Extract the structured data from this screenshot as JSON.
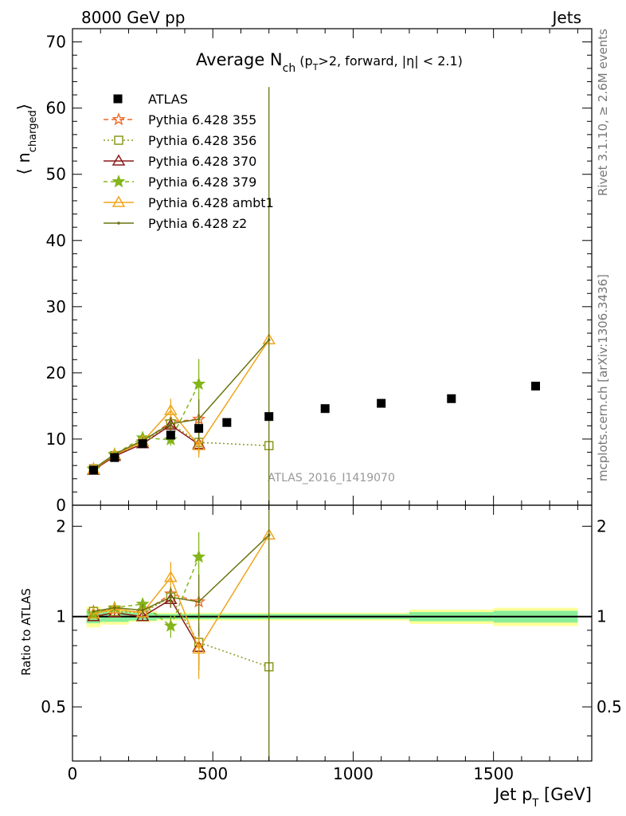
{
  "header": {
    "left": "8000 GeV pp",
    "right": "Jets",
    "side_top": "Rivet 3.1.10, ≥ 2.6M events",
    "side_bottom": "mcplots.cern.ch [arXiv:1306.3436]",
    "watermark": "ATLAS_2016_I1419070"
  },
  "chart_data": {
    "type": "line",
    "title": "Average N_ch (p_T>2, forward, |η| < 2.1)",
    "title_main": "Average N",
    "title_sub": "ch",
    "title_rest_a": " (p",
    "title_rest_sub": "T",
    "title_rest_b": ">2, forward, |η| < 2.1)",
    "ylabel": "⟨ n",
    "ylabel_sub": "charged",
    "ylabel_close": "⟩",
    "ratio_ylabel": "Ratio to ATLAS",
    "xlabel": "Jet p",
    "xlabel_sub": "T",
    "xlabel_unit": " [GeV]",
    "xlim": [
      0,
      1850
    ],
    "ylim": [
      0,
      72
    ],
    "ratio_ylim": [
      0.33,
      2.35
    ],
    "x_ticks": [
      0,
      500,
      1000,
      1500
    ],
    "y_ticks": [
      0,
      10,
      20,
      30,
      40,
      50,
      60,
      70
    ],
    "ratio_ticks": [
      0.5,
      1,
      2
    ],
    "ratio_tick_labels": [
      "0.5",
      "1",
      "2"
    ],
    "legend_position": "top-left",
    "data": {
      "name": "ATLAS",
      "x": [
        75,
        150,
        250,
        350,
        450,
        550,
        700,
        900,
        1100,
        1350,
        1650
      ],
      "y": [
        5.3,
        7.2,
        9.3,
        10.6,
        11.6,
        12.5,
        13.4,
        14.6,
        15.4,
        16.1,
        18.0
      ],
      "x_err": [
        25,
        50,
        50,
        50,
        50,
        50,
        100,
        100,
        100,
        150,
        150
      ],
      "band_stat": [
        0.05,
        0.04,
        0.03,
        0.02,
        0.02,
        0.02,
        0.02,
        0.02,
        0.02,
        0.035,
        0.045
      ],
      "band_total": [
        0.08,
        0.06,
        0.04,
        0.03,
        0.03,
        0.03,
        0.03,
        0.03,
        0.03,
        0.055,
        0.07
      ]
    },
    "series": [
      {
        "name": "Pythia 6.428 355",
        "color": "#ee6a2a",
        "dash": "6,4",
        "marker": "star-open",
        "x": [
          75,
          150,
          250,
          350,
          450
        ],
        "y": [
          5.5,
          7.6,
          9.6,
          12.6,
          13.0
        ],
        "yerr": [
          0.1,
          0.2,
          0.3,
          0.8,
          1.5
        ]
      },
      {
        "name": "Pythia 6.428 356",
        "color": "#8c9a1c",
        "dash": "2,3",
        "marker": "square-open",
        "x": [
          75,
          150,
          250,
          350,
          450,
          700
        ],
        "y": [
          5.5,
          7.5,
          9.6,
          12.3,
          9.5,
          9.0
        ],
        "yerr": [
          0.1,
          0.2,
          0.3,
          0.8,
          1.5,
          0.3
        ]
      },
      {
        "name": "Pythia 6.428 370",
        "color": "#8b1a1a",
        "dash": "",
        "marker": "triangle-open",
        "x": [
          75,
          150,
          250,
          350,
          450
        ],
        "y": [
          5.3,
          7.4,
          9.3,
          12.1,
          9.2
        ],
        "yerr": [
          0.1,
          0.2,
          0.3,
          0.8,
          1.5
        ]
      },
      {
        "name": "Pythia 6.428 379",
        "color": "#84b51a",
        "dash": "5,4",
        "marker": "star-filled",
        "x": [
          75,
          150,
          250,
          350,
          450
        ],
        "y": [
          5.4,
          7.7,
          10.2,
          9.9,
          18.3
        ],
        "yerr": [
          0.1,
          0.3,
          0.4,
          0.9,
          3.8
        ]
      },
      {
        "name": "Pythia 6.428 ambt1",
        "color": "#f0a51c",
        "dash": "",
        "marker": "triangle-open",
        "x": [
          75,
          150,
          250,
          350,
          450,
          700
        ],
        "y": [
          5.4,
          7.6,
          9.6,
          14.3,
          9.0,
          25.0
        ],
        "yerr": [
          0.1,
          0.2,
          0.4,
          1.8,
          1.8,
          0.4
        ]
      },
      {
        "name": "Pythia 6.428 z2",
        "color": "#6b7410",
        "dash": "",
        "marker": "dot",
        "x": [
          75,
          150,
          250,
          350,
          450,
          700
        ],
        "y": [
          5.5,
          7.7,
          9.8,
          12.3,
          13.0,
          25.0
        ],
        "yerr": [
          0.1,
          0.2,
          0.5,
          1.0,
          3.0,
          38.2
        ]
      }
    ],
    "ratios": [
      [
        1.04,
        1.06,
        1.03,
        1.19,
        1.12
      ],
      [
        1.04,
        1.04,
        1.03,
        1.16,
        0.82,
        0.68
      ],
      [
        1.0,
        1.03,
        1.0,
        1.14,
        0.79
      ],
      [
        1.02,
        1.07,
        1.1,
        0.93,
        1.58
      ],
      [
        1.02,
        1.06,
        1.03,
        1.35,
        0.78,
        1.87
      ],
      [
        1.04,
        1.07,
        1.05,
        1.16,
        1.12,
        1.87
      ]
    ],
    "ratio_errs": [
      [
        0.01,
        0.02,
        0.03,
        0.07,
        0.13
      ],
      [
        0.01,
        0.02,
        0.03,
        0.07,
        0.13,
        0.02
      ],
      [
        0.01,
        0.02,
        0.03,
        0.07,
        0.13
      ],
      [
        0.01,
        0.03,
        0.04,
        0.08,
        0.33
      ],
      [
        0.01,
        0.02,
        0.04,
        0.17,
        0.16,
        0.03
      ],
      [
        0.01,
        0.02,
        0.05,
        0.09,
        0.26,
        2.9
      ]
    ]
  }
}
